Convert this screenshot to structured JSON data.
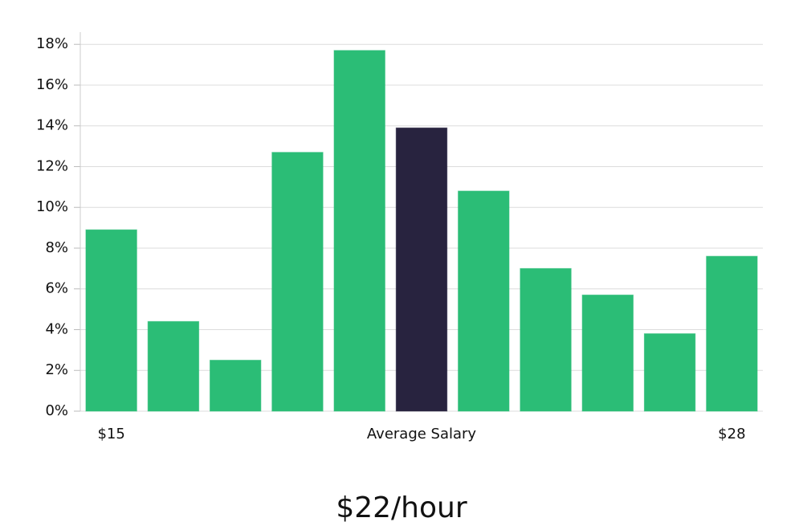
{
  "chart_data": {
    "type": "bar",
    "caption": "$22/hour",
    "categories": [
      "$15",
      null,
      null,
      null,
      null,
      "Average Salary",
      null,
      null,
      null,
      null,
      "$28"
    ],
    "values": [
      8.9,
      4.4,
      2.5,
      12.7,
      17.7,
      13.9,
      10.8,
      7.0,
      5.7,
      3.8,
      7.6
    ],
    "colors": [
      "#2bbd76",
      "#2bbd76",
      "#2bbd76",
      "#2bbd76",
      "#2bbd76",
      "#28233f",
      "#2bbd76",
      "#2bbd76",
      "#2bbd76",
      "#2bbd76",
      "#2bbd76"
    ],
    "ylim": [
      0,
      18.6
    ],
    "yticks": [
      {
        "value": 0,
        "label": "0%"
      },
      {
        "value": 2,
        "label": "2%"
      },
      {
        "value": 4,
        "label": "4%"
      },
      {
        "value": 6,
        "label": "6%"
      },
      {
        "value": 8,
        "label": "8%"
      },
      {
        "value": 10,
        "label": "10%"
      },
      {
        "value": 12,
        "label": "12%"
      },
      {
        "value": 14,
        "label": "14%"
      },
      {
        "value": 16,
        "label": "16%"
      },
      {
        "value": 18,
        "label": "18%"
      }
    ],
    "grid": true
  }
}
